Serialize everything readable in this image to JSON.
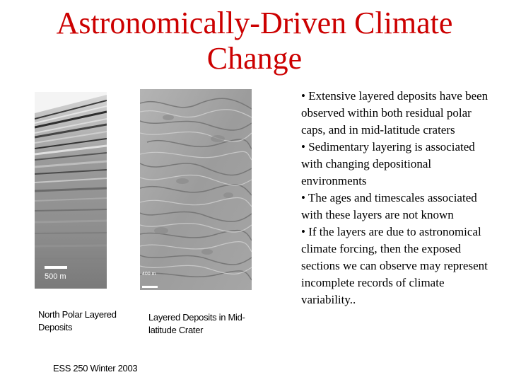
{
  "slide": {
    "title": "Astronomically-Driven Climate Change",
    "bullets": [
      "• Extensive layered deposits have been observed within both residual polar caps, and in mid-latitude craters",
      "• Sedimentary layering is associated with changing depositional environments",
      "• The ages and timescales associated with these layers are not known",
      "• If the layers are due to astronomical climate forcing, then the exposed sections we can observe may represent incomplete records of climate variability.."
    ],
    "images": {
      "left": {
        "caption": "North Polar Layered Deposits",
        "scale_label": "500 m"
      },
      "right": {
        "caption": "Layered Deposits in Mid-latitude Crater",
        "scale_label": "400 m"
      }
    },
    "footer": "ESS 250 Winter 2003"
  }
}
